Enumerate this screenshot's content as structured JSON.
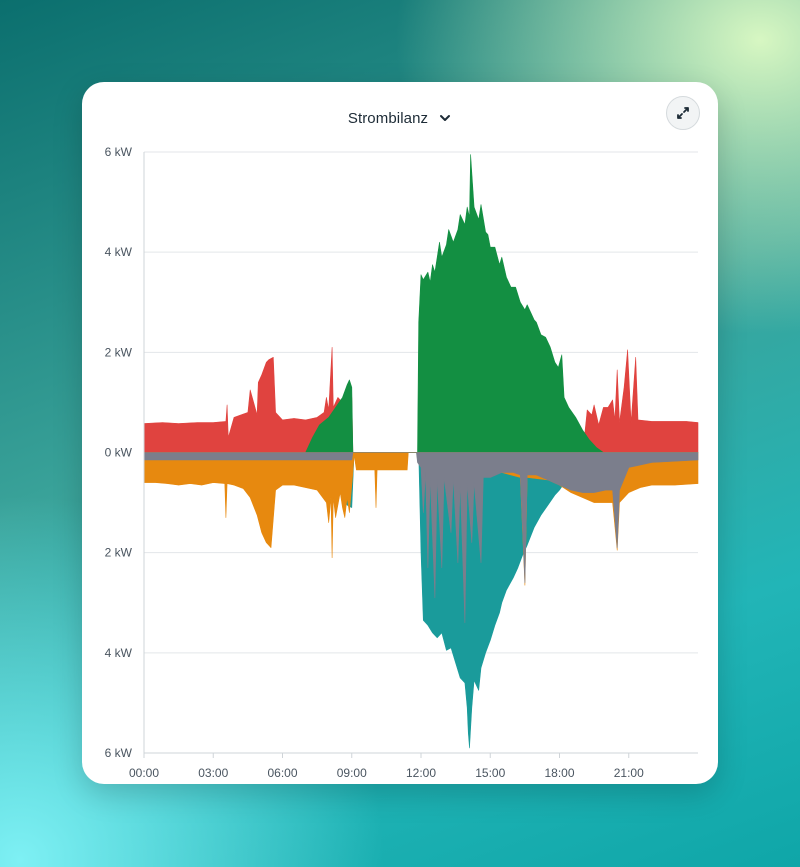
{
  "card": {
    "title": "Strombilanz",
    "dropdown_icon": "chevron-down-icon",
    "expand_icon": "expand-icon"
  },
  "chart_data": {
    "type": "area",
    "title": "Strombilanz",
    "xlabel": "",
    "ylabel": "",
    "x_unit": "hours",
    "x_range": [
      0,
      24
    ],
    "y_range": [
      -6,
      6
    ],
    "x_ticks": [
      {
        "value": 0,
        "label": "00:00"
      },
      {
        "value": 3,
        "label": "03:00"
      },
      {
        "value": 6,
        "label": "06:00"
      },
      {
        "value": 9,
        "label": "09:00"
      },
      {
        "value": 12,
        "label": "12:00"
      },
      {
        "value": 15,
        "label": "15:00"
      },
      {
        "value": 18,
        "label": "18:00"
      },
      {
        "value": 21,
        "label": "21:00"
      }
    ],
    "y_ticks": [
      {
        "value": 6,
        "label": "6 kW"
      },
      {
        "value": 4,
        "label": "4 kW"
      },
      {
        "value": 2,
        "label": "2 kW"
      },
      {
        "value": 0,
        "label": "0 kW"
      },
      {
        "value": -2,
        "label": "2 kW"
      },
      {
        "value": -4,
        "label": "4 kW"
      },
      {
        "value": -6,
        "label": "6 kW"
      }
    ],
    "grid": true,
    "legend": "none",
    "series": [
      {
        "color": "#e0433f",
        "side": "positive",
        "points": [
          [
            0.0,
            0.0
          ],
          [
            0.0,
            0.58
          ],
          [
            0.8,
            0.6
          ],
          [
            1.5,
            0.58
          ],
          [
            2.3,
            0.6
          ],
          [
            3.0,
            0.6
          ],
          [
            3.55,
            0.62
          ],
          [
            3.6,
            0.95
          ],
          [
            3.65,
            0.3
          ],
          [
            3.9,
            0.7
          ],
          [
            4.2,
            0.75
          ],
          [
            4.5,
            0.8
          ],
          [
            4.6,
            1.25
          ],
          [
            4.9,
            0.75
          ],
          [
            4.95,
            1.4
          ],
          [
            5.1,
            1.55
          ],
          [
            5.3,
            1.8
          ],
          [
            5.4,
            1.85
          ],
          [
            5.6,
            1.9
          ],
          [
            5.7,
            0.8
          ],
          [
            6.0,
            0.65
          ],
          [
            6.5,
            0.68
          ],
          [
            7.0,
            0.65
          ],
          [
            7.5,
            0.7
          ],
          [
            7.8,
            0.8
          ],
          [
            7.9,
            1.1
          ],
          [
            8.0,
            0.85
          ],
          [
            8.1,
            1.7
          ],
          [
            8.15,
            2.1
          ],
          [
            8.2,
            0.9
          ],
          [
            8.4,
            1.1
          ],
          [
            8.6,
            1.0
          ],
          [
            8.8,
            1.2
          ],
          [
            9.0,
            1.1
          ],
          [
            9.05,
            0.0
          ],
          [
            9.5,
            0.0
          ],
          [
            11.8,
            0.0
          ],
          [
            11.8,
            0.0
          ],
          [
            19.05,
            0.0
          ],
          [
            19.1,
            0.4
          ],
          [
            19.2,
            0.85
          ],
          [
            19.4,
            0.75
          ],
          [
            19.5,
            0.95
          ],
          [
            19.7,
            0.55
          ],
          [
            19.9,
            0.9
          ],
          [
            20.1,
            0.9
          ],
          [
            20.3,
            1.05
          ],
          [
            20.4,
            0.65
          ],
          [
            20.5,
            1.65
          ],
          [
            20.6,
            0.6
          ],
          [
            20.8,
            1.3
          ],
          [
            20.95,
            2.05
          ],
          [
            21.1,
            0.6
          ],
          [
            21.3,
            1.9
          ],
          [
            21.4,
            0.65
          ],
          [
            22.0,
            0.62
          ],
          [
            22.5,
            0.62
          ],
          [
            23.0,
            0.62
          ],
          [
            23.5,
            0.62
          ],
          [
            24.0,
            0.6
          ],
          [
            24.0,
            0.0
          ]
        ]
      },
      {
        "color": "#138f42",
        "side": "positive",
        "points": [
          [
            7.0,
            0.0
          ],
          [
            7.3,
            0.3
          ],
          [
            7.6,
            0.55
          ],
          [
            8.0,
            0.7
          ],
          [
            8.3,
            0.9
          ],
          [
            8.6,
            1.1
          ],
          [
            8.8,
            1.35
          ],
          [
            8.9,
            1.45
          ],
          [
            9.0,
            1.3
          ],
          [
            9.05,
            0.0
          ],
          [
            11.85,
            0.0
          ],
          [
            11.9,
            2.6
          ],
          [
            12.0,
            3.55
          ],
          [
            12.1,
            3.45
          ],
          [
            12.3,
            3.6
          ],
          [
            12.4,
            3.4
          ],
          [
            12.5,
            3.75
          ],
          [
            12.6,
            3.6
          ],
          [
            12.8,
            4.2
          ],
          [
            12.9,
            3.9
          ],
          [
            13.1,
            4.15
          ],
          [
            13.2,
            4.45
          ],
          [
            13.4,
            4.2
          ],
          [
            13.6,
            4.45
          ],
          [
            13.7,
            4.75
          ],
          [
            13.9,
            4.55
          ],
          [
            14.0,
            4.9
          ],
          [
            14.1,
            4.7
          ],
          [
            14.15,
            5.95
          ],
          [
            14.3,
            4.9
          ],
          [
            14.5,
            4.65
          ],
          [
            14.6,
            4.95
          ],
          [
            14.8,
            4.4
          ],
          [
            14.9,
            4.35
          ],
          [
            15.0,
            4.1
          ],
          [
            15.2,
            4.1
          ],
          [
            15.4,
            3.75
          ],
          [
            15.5,
            3.9
          ],
          [
            15.7,
            3.5
          ],
          [
            15.9,
            3.3
          ],
          [
            16.1,
            3.3
          ],
          [
            16.3,
            3.0
          ],
          [
            16.5,
            2.85
          ],
          [
            16.6,
            2.95
          ],
          [
            16.9,
            2.65
          ],
          [
            17.0,
            2.6
          ],
          [
            17.2,
            2.35
          ],
          [
            17.4,
            2.3
          ],
          [
            17.6,
            2.1
          ],
          [
            17.8,
            1.8
          ],
          [
            17.95,
            1.7
          ],
          [
            18.1,
            1.95
          ],
          [
            18.2,
            1.1
          ],
          [
            18.4,
            0.9
          ],
          [
            18.7,
            0.7
          ],
          [
            19.0,
            0.45
          ],
          [
            19.3,
            0.25
          ],
          [
            19.6,
            0.1
          ],
          [
            19.9,
            0.0
          ]
        ]
      },
      {
        "color": "#1a9b9b",
        "side": "negative",
        "points": [
          [
            8.5,
            0.0
          ],
          [
            8.6,
            -0.8
          ],
          [
            8.8,
            -1.05
          ],
          [
            9.0,
            -1.1
          ],
          [
            9.1,
            0.0
          ],
          [
            11.9,
            0.0
          ],
          [
            12.0,
            -2.0
          ],
          [
            12.1,
            -3.35
          ],
          [
            12.3,
            -3.45
          ],
          [
            12.5,
            -3.6
          ],
          [
            12.7,
            -3.7
          ],
          [
            12.9,
            -3.6
          ],
          [
            13.1,
            -3.95
          ],
          [
            13.3,
            -3.9
          ],
          [
            13.5,
            -4.2
          ],
          [
            13.7,
            -4.5
          ],
          [
            13.9,
            -4.6
          ],
          [
            14.0,
            -5.1
          ],
          [
            14.05,
            -5.6
          ],
          [
            14.1,
            -5.9
          ],
          [
            14.2,
            -5.1
          ],
          [
            14.3,
            -4.55
          ],
          [
            14.5,
            -4.75
          ],
          [
            14.6,
            -4.3
          ],
          [
            14.8,
            -4.0
          ],
          [
            15.0,
            -3.75
          ],
          [
            15.2,
            -3.45
          ],
          [
            15.4,
            -3.2
          ],
          [
            15.5,
            -3.0
          ],
          [
            15.7,
            -2.75
          ],
          [
            16.0,
            -2.5
          ],
          [
            16.2,
            -2.3
          ],
          [
            16.4,
            -2.05
          ],
          [
            16.6,
            -1.85
          ],
          [
            16.9,
            -1.5
          ],
          [
            17.2,
            -1.25
          ],
          [
            17.5,
            -1.05
          ],
          [
            17.8,
            -0.85
          ],
          [
            18.0,
            -0.75
          ],
          [
            18.3,
            -0.55
          ],
          [
            18.6,
            -0.45
          ],
          [
            18.9,
            -0.3
          ],
          [
            19.2,
            -0.3
          ],
          [
            19.5,
            -0.25
          ],
          [
            19.8,
            -0.4
          ],
          [
            20.4,
            -0.5
          ],
          [
            20.5,
            -1.2
          ],
          [
            20.6,
            -0.5
          ],
          [
            24.0,
            0.0
          ]
        ]
      },
      {
        "color": "#e7890f",
        "side": "negative",
        "points": [
          [
            0.0,
            0.0
          ],
          [
            0.0,
            -0.6
          ],
          [
            0.5,
            -0.6
          ],
          [
            1.0,
            -0.62
          ],
          [
            1.5,
            -0.65
          ],
          [
            2.0,
            -0.62
          ],
          [
            2.5,
            -0.65
          ],
          [
            3.0,
            -0.6
          ],
          [
            3.5,
            -0.62
          ],
          [
            3.55,
            -1.3
          ],
          [
            3.6,
            -0.62
          ],
          [
            3.9,
            -0.65
          ],
          [
            4.3,
            -0.72
          ],
          [
            4.6,
            -0.9
          ],
          [
            4.9,
            -1.25
          ],
          [
            5.1,
            -1.6
          ],
          [
            5.3,
            -1.8
          ],
          [
            5.5,
            -1.9
          ],
          [
            5.7,
            -0.75
          ],
          [
            6.0,
            -0.65
          ],
          [
            6.5,
            -0.65
          ],
          [
            7.0,
            -0.7
          ],
          [
            7.5,
            -0.75
          ],
          [
            7.9,
            -1.0
          ],
          [
            8.0,
            -1.4
          ],
          [
            8.1,
            -0.9
          ],
          [
            8.15,
            -2.1
          ],
          [
            8.2,
            -0.9
          ],
          [
            8.3,
            -1.3
          ],
          [
            8.5,
            -0.8
          ],
          [
            8.6,
            -1.1
          ],
          [
            8.7,
            -1.3
          ],
          [
            8.8,
            -0.9
          ],
          [
            8.9,
            -1.2
          ],
          [
            9.05,
            -0.4
          ],
          [
            9.1,
            -0.05
          ],
          [
            9.2,
            -0.35
          ],
          [
            10.0,
            -0.35
          ],
          [
            10.05,
            -1.1
          ],
          [
            10.1,
            -0.35
          ],
          [
            11.4,
            -0.35
          ],
          [
            11.45,
            0.0
          ],
          [
            11.9,
            0.0
          ],
          [
            12.0,
            -0.1
          ],
          [
            15.5,
            -0.4
          ],
          [
            16.3,
            -0.5
          ],
          [
            16.5,
            -2.65
          ],
          [
            16.6,
            -0.5
          ],
          [
            17.5,
            -0.55
          ],
          [
            18.0,
            -0.65
          ],
          [
            18.5,
            -0.8
          ],
          [
            19.0,
            -0.9
          ],
          [
            19.5,
            -1.0
          ],
          [
            20.0,
            -1.0
          ],
          [
            20.3,
            -1.0
          ],
          [
            20.5,
            -1.95
          ],
          [
            20.6,
            -1.0
          ],
          [
            21.0,
            -0.8
          ],
          [
            21.5,
            -0.7
          ],
          [
            22.0,
            -0.65
          ],
          [
            23.0,
            -0.65
          ],
          [
            24.0,
            -0.62
          ],
          [
            24.0,
            0.0
          ]
        ]
      },
      {
        "color": "#7b7e8c",
        "side": "negative",
        "points": [
          [
            0.0,
            0.0
          ],
          [
            0.0,
            -0.15
          ],
          [
            9.0,
            -0.15
          ],
          [
            9.05,
            0.0
          ],
          [
            11.8,
            0.0
          ],
          [
            11.85,
            -0.2
          ],
          [
            12.0,
            -0.3
          ],
          [
            12.1,
            -1.2
          ],
          [
            12.2,
            -0.4
          ],
          [
            12.3,
            -2.3
          ],
          [
            12.4,
            -0.5
          ],
          [
            12.6,
            -2.9
          ],
          [
            12.7,
            -0.5
          ],
          [
            12.9,
            -2.3
          ],
          [
            13.0,
            -0.5
          ],
          [
            13.3,
            -1.6
          ],
          [
            13.4,
            -0.5
          ],
          [
            13.6,
            -2.2
          ],
          [
            13.7,
            -0.6
          ],
          [
            13.9,
            -3.4
          ],
          [
            14.0,
            -0.6
          ],
          [
            14.2,
            -1.8
          ],
          [
            14.3,
            -0.6
          ],
          [
            14.6,
            -2.2
          ],
          [
            14.7,
            -0.5
          ],
          [
            15.0,
            -0.5
          ],
          [
            15.5,
            -0.4
          ],
          [
            16.0,
            -0.4
          ],
          [
            16.3,
            -0.45
          ],
          [
            16.5,
            -2.6
          ],
          [
            16.6,
            -0.45
          ],
          [
            17.0,
            -0.45
          ],
          [
            17.5,
            -0.55
          ],
          [
            18.0,
            -0.65
          ],
          [
            18.5,
            -0.75
          ],
          [
            19.0,
            -0.8
          ],
          [
            19.5,
            -0.8
          ],
          [
            20.0,
            -0.75
          ],
          [
            20.3,
            -0.75
          ],
          [
            20.5,
            -1.9
          ],
          [
            20.6,
            -0.75
          ],
          [
            21.0,
            -0.3
          ],
          [
            22.0,
            -0.2
          ],
          [
            24.0,
            -0.15
          ],
          [
            24.0,
            0.0
          ]
        ]
      }
    ]
  }
}
